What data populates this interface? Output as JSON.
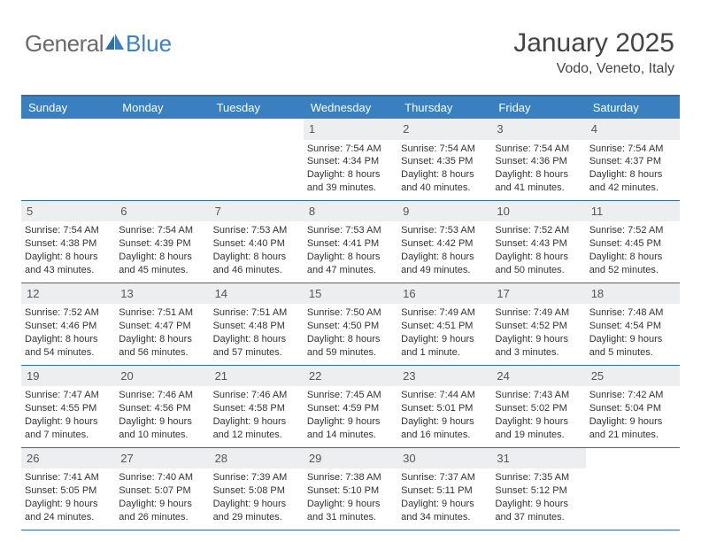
{
  "logo": {
    "part1": "General",
    "part2": "Blue"
  },
  "title": "January 2025",
  "location": "Vodo, Veneto, Italy",
  "colors": {
    "header_bg": "#3a80c0",
    "header_text": "#ffffff",
    "border": "#2f6fa7",
    "daynum_bg": "#eceeef",
    "text": "#333333",
    "logo_gray": "#6b6b6b",
    "logo_blue": "#3b82c4"
  },
  "day_names": [
    "Sunday",
    "Monday",
    "Tuesday",
    "Wednesday",
    "Thursday",
    "Friday",
    "Saturday"
  ],
  "weeks": [
    [
      {
        "n": "",
        "empty": true
      },
      {
        "n": "",
        "empty": true
      },
      {
        "n": "",
        "empty": true
      },
      {
        "n": "1",
        "sr": "Sunrise: 7:54 AM",
        "ss": "Sunset: 4:34 PM",
        "d1": "Daylight: 8 hours",
        "d2": "and 39 minutes."
      },
      {
        "n": "2",
        "sr": "Sunrise: 7:54 AM",
        "ss": "Sunset: 4:35 PM",
        "d1": "Daylight: 8 hours",
        "d2": "and 40 minutes."
      },
      {
        "n": "3",
        "sr": "Sunrise: 7:54 AM",
        "ss": "Sunset: 4:36 PM",
        "d1": "Daylight: 8 hours",
        "d2": "and 41 minutes."
      },
      {
        "n": "4",
        "sr": "Sunrise: 7:54 AM",
        "ss": "Sunset: 4:37 PM",
        "d1": "Daylight: 8 hours",
        "d2": "and 42 minutes."
      }
    ],
    [
      {
        "n": "5",
        "sr": "Sunrise: 7:54 AM",
        "ss": "Sunset: 4:38 PM",
        "d1": "Daylight: 8 hours",
        "d2": "and 43 minutes."
      },
      {
        "n": "6",
        "sr": "Sunrise: 7:54 AM",
        "ss": "Sunset: 4:39 PM",
        "d1": "Daylight: 8 hours",
        "d2": "and 45 minutes."
      },
      {
        "n": "7",
        "sr": "Sunrise: 7:53 AM",
        "ss": "Sunset: 4:40 PM",
        "d1": "Daylight: 8 hours",
        "d2": "and 46 minutes."
      },
      {
        "n": "8",
        "sr": "Sunrise: 7:53 AM",
        "ss": "Sunset: 4:41 PM",
        "d1": "Daylight: 8 hours",
        "d2": "and 47 minutes."
      },
      {
        "n": "9",
        "sr": "Sunrise: 7:53 AM",
        "ss": "Sunset: 4:42 PM",
        "d1": "Daylight: 8 hours",
        "d2": "and 49 minutes."
      },
      {
        "n": "10",
        "sr": "Sunrise: 7:52 AM",
        "ss": "Sunset: 4:43 PM",
        "d1": "Daylight: 8 hours",
        "d2": "and 50 minutes."
      },
      {
        "n": "11",
        "sr": "Sunrise: 7:52 AM",
        "ss": "Sunset: 4:45 PM",
        "d1": "Daylight: 8 hours",
        "d2": "and 52 minutes."
      }
    ],
    [
      {
        "n": "12",
        "sr": "Sunrise: 7:52 AM",
        "ss": "Sunset: 4:46 PM",
        "d1": "Daylight: 8 hours",
        "d2": "and 54 minutes."
      },
      {
        "n": "13",
        "sr": "Sunrise: 7:51 AM",
        "ss": "Sunset: 4:47 PM",
        "d1": "Daylight: 8 hours",
        "d2": "and 56 minutes."
      },
      {
        "n": "14",
        "sr": "Sunrise: 7:51 AM",
        "ss": "Sunset: 4:48 PM",
        "d1": "Daylight: 8 hours",
        "d2": "and 57 minutes."
      },
      {
        "n": "15",
        "sr": "Sunrise: 7:50 AM",
        "ss": "Sunset: 4:50 PM",
        "d1": "Daylight: 8 hours",
        "d2": "and 59 minutes."
      },
      {
        "n": "16",
        "sr": "Sunrise: 7:49 AM",
        "ss": "Sunset: 4:51 PM",
        "d1": "Daylight: 9 hours",
        "d2": "and 1 minute."
      },
      {
        "n": "17",
        "sr": "Sunrise: 7:49 AM",
        "ss": "Sunset: 4:52 PM",
        "d1": "Daylight: 9 hours",
        "d2": "and 3 minutes."
      },
      {
        "n": "18",
        "sr": "Sunrise: 7:48 AM",
        "ss": "Sunset: 4:54 PM",
        "d1": "Daylight: 9 hours",
        "d2": "and 5 minutes."
      }
    ],
    [
      {
        "n": "19",
        "sr": "Sunrise: 7:47 AM",
        "ss": "Sunset: 4:55 PM",
        "d1": "Daylight: 9 hours",
        "d2": "and 7 minutes."
      },
      {
        "n": "20",
        "sr": "Sunrise: 7:46 AM",
        "ss": "Sunset: 4:56 PM",
        "d1": "Daylight: 9 hours",
        "d2": "and 10 minutes."
      },
      {
        "n": "21",
        "sr": "Sunrise: 7:46 AM",
        "ss": "Sunset: 4:58 PM",
        "d1": "Daylight: 9 hours",
        "d2": "and 12 minutes."
      },
      {
        "n": "22",
        "sr": "Sunrise: 7:45 AM",
        "ss": "Sunset: 4:59 PM",
        "d1": "Daylight: 9 hours",
        "d2": "and 14 minutes."
      },
      {
        "n": "23",
        "sr": "Sunrise: 7:44 AM",
        "ss": "Sunset: 5:01 PM",
        "d1": "Daylight: 9 hours",
        "d2": "and 16 minutes."
      },
      {
        "n": "24",
        "sr": "Sunrise: 7:43 AM",
        "ss": "Sunset: 5:02 PM",
        "d1": "Daylight: 9 hours",
        "d2": "and 19 minutes."
      },
      {
        "n": "25",
        "sr": "Sunrise: 7:42 AM",
        "ss": "Sunset: 5:04 PM",
        "d1": "Daylight: 9 hours",
        "d2": "and 21 minutes."
      }
    ],
    [
      {
        "n": "26",
        "sr": "Sunrise: 7:41 AM",
        "ss": "Sunset: 5:05 PM",
        "d1": "Daylight: 9 hours",
        "d2": "and 24 minutes."
      },
      {
        "n": "27",
        "sr": "Sunrise: 7:40 AM",
        "ss": "Sunset: 5:07 PM",
        "d1": "Daylight: 9 hours",
        "d2": "and 26 minutes."
      },
      {
        "n": "28",
        "sr": "Sunrise: 7:39 AM",
        "ss": "Sunset: 5:08 PM",
        "d1": "Daylight: 9 hours",
        "d2": "and 29 minutes."
      },
      {
        "n": "29",
        "sr": "Sunrise: 7:38 AM",
        "ss": "Sunset: 5:10 PM",
        "d1": "Daylight: 9 hours",
        "d2": "and 31 minutes."
      },
      {
        "n": "30",
        "sr": "Sunrise: 7:37 AM",
        "ss": "Sunset: 5:11 PM",
        "d1": "Daylight: 9 hours",
        "d2": "and 34 minutes."
      },
      {
        "n": "31",
        "sr": "Sunrise: 7:35 AM",
        "ss": "Sunset: 5:12 PM",
        "d1": "Daylight: 9 hours",
        "d2": "and 37 minutes."
      },
      {
        "n": "",
        "empty": true
      }
    ]
  ]
}
